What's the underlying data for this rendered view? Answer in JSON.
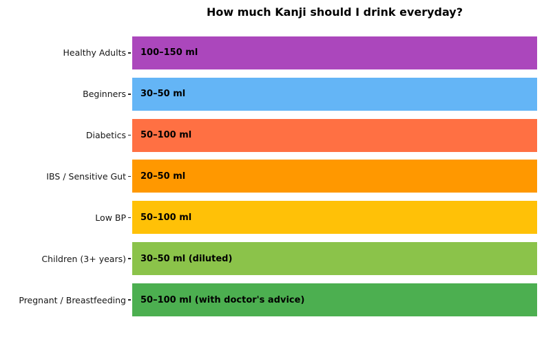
{
  "title": "How much Kanji should I drink everyday?",
  "chart_data": {
    "type": "bar",
    "orientation": "horizontal",
    "title": "How much Kanji should I drink everyday?",
    "categories": [
      "Healthy Adults",
      "Beginners",
      "Diabetics",
      "IBS / Sensitive Gut",
      "Low BP",
      "Children (3+ years)",
      "Pregnant / Breastfeeding"
    ],
    "value_labels": [
      "100–150 ml",
      "30–50 ml",
      "50–100 ml",
      "20–50 ml",
      "50–100 ml",
      "30–50 ml (diluted)",
      "50–100 ml (with doctor's advice)"
    ],
    "ranges_ml": [
      [
        100,
        150
      ],
      [
        30,
        50
      ],
      [
        50,
        100
      ],
      [
        20,
        50
      ],
      [
        50,
        100
      ],
      [
        30,
        50
      ],
      [
        50,
        100
      ]
    ],
    "values": [
      1,
      1,
      1,
      1,
      1,
      1,
      1
    ],
    "bar_note": "all bars rendered at equal full length; dosage ranges shown as in-bar text labels",
    "colors": [
      "#AB47BC",
      "#64B5F6",
      "#FF7043",
      "#FF9800",
      "#FFC107",
      "#8BC34A",
      "#4CAF50"
    ],
    "xlabel": "",
    "ylabel": "",
    "grid": false,
    "legend": false,
    "axes_visible": false,
    "tick_color": "#262626",
    "background": "#FFFFFF"
  }
}
